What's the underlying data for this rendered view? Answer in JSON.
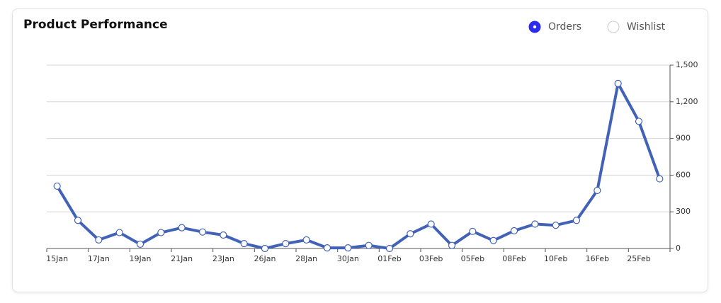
{
  "chart_data": {
    "type": "line",
    "title": "Product Performance",
    "categories": [
      "15Jan",
      null,
      "17Jan",
      null,
      "19Jan",
      null,
      "21Jan",
      null,
      "23Jan",
      null,
      "26Jan",
      null,
      "28Jan",
      null,
      "30Jan",
      null,
      "01Feb",
      null,
      "03Feb",
      null,
      "05Feb",
      null,
      "08Feb",
      null,
      "10Feb",
      null,
      "16Feb",
      null,
      "25Feb",
      null
    ],
    "series": [
      {
        "name": "Orders",
        "color": "#4262b8",
        "values": [
          510,
          230,
          70,
          130,
          35,
          130,
          170,
          135,
          110,
          40,
          0,
          40,
          70,
          5,
          5,
          25,
          0,
          120,
          200,
          25,
          140,
          65,
          145,
          200,
          190,
          230,
          475,
          1350,
          1040,
          570
        ]
      },
      {
        "name": "Wishlist",
        "visible": false
      }
    ],
    "ylim": [
      0,
      1500
    ],
    "yticks": [
      0,
      300,
      600,
      900,
      {
        "value": 1200,
        "label": "1,200"
      },
      {
        "value": 1500,
        "label": "1,500"
      }
    ],
    "grid": true,
    "y_axis_side": "right",
    "legend": "top-right"
  }
}
